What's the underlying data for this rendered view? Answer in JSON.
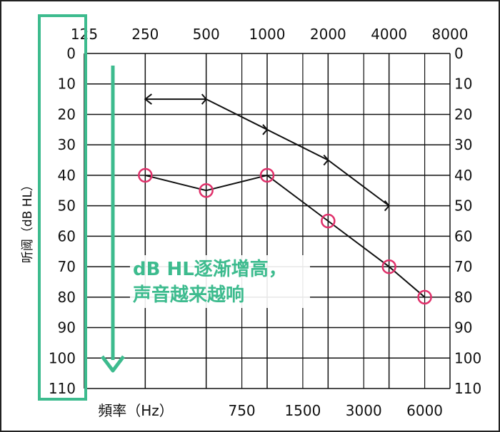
{
  "chart_data": {
    "type": "line",
    "title": "",
    "xlabel": "頻率（Hz）",
    "ylabel": "听阈（dB HL）",
    "top_ticks": [
      "125",
      "250",
      "500",
      "1000",
      "2000",
      "4000",
      "8000"
    ],
    "bottom_ticks": [
      "750",
      "1500",
      "3000",
      "6000"
    ],
    "y_ticks": [
      "0",
      "10",
      "20",
      "30",
      "40",
      "50",
      "60",
      "70",
      "80",
      "90",
      "100",
      "110"
    ],
    "ylim": [
      0,
      110
    ],
    "y_inverted": true,
    "grid": true,
    "series": [
      {
        "marker": "circle",
        "color": "#e0306a",
        "points": [
          {
            "x": 250,
            "y": 40
          },
          {
            "x": 500,
            "y": 45
          },
          {
            "x": 1000,
            "y": 40
          },
          {
            "x": 2000,
            "y": 55
          },
          {
            "x": 4000,
            "y": 70
          },
          {
            "x": 6000,
            "y": 80
          }
        ]
      },
      {
        "marker": "bracket-right",
        "color": "#111111",
        "arrow_at_start": true,
        "points": [
          {
            "x": 250,
            "y": 15
          },
          {
            "x": 500,
            "y": 15
          },
          {
            "x": 1000,
            "y": 25
          },
          {
            "x": 2000,
            "y": 35
          },
          {
            "x": 4000,
            "y": 50
          }
        ]
      }
    ],
    "annotation": {
      "line1": "dB HL逐渐增高，",
      "line2": "声音越来越响",
      "color": "#3dbb8e"
    },
    "highlight_color": "#3dbb8e"
  }
}
